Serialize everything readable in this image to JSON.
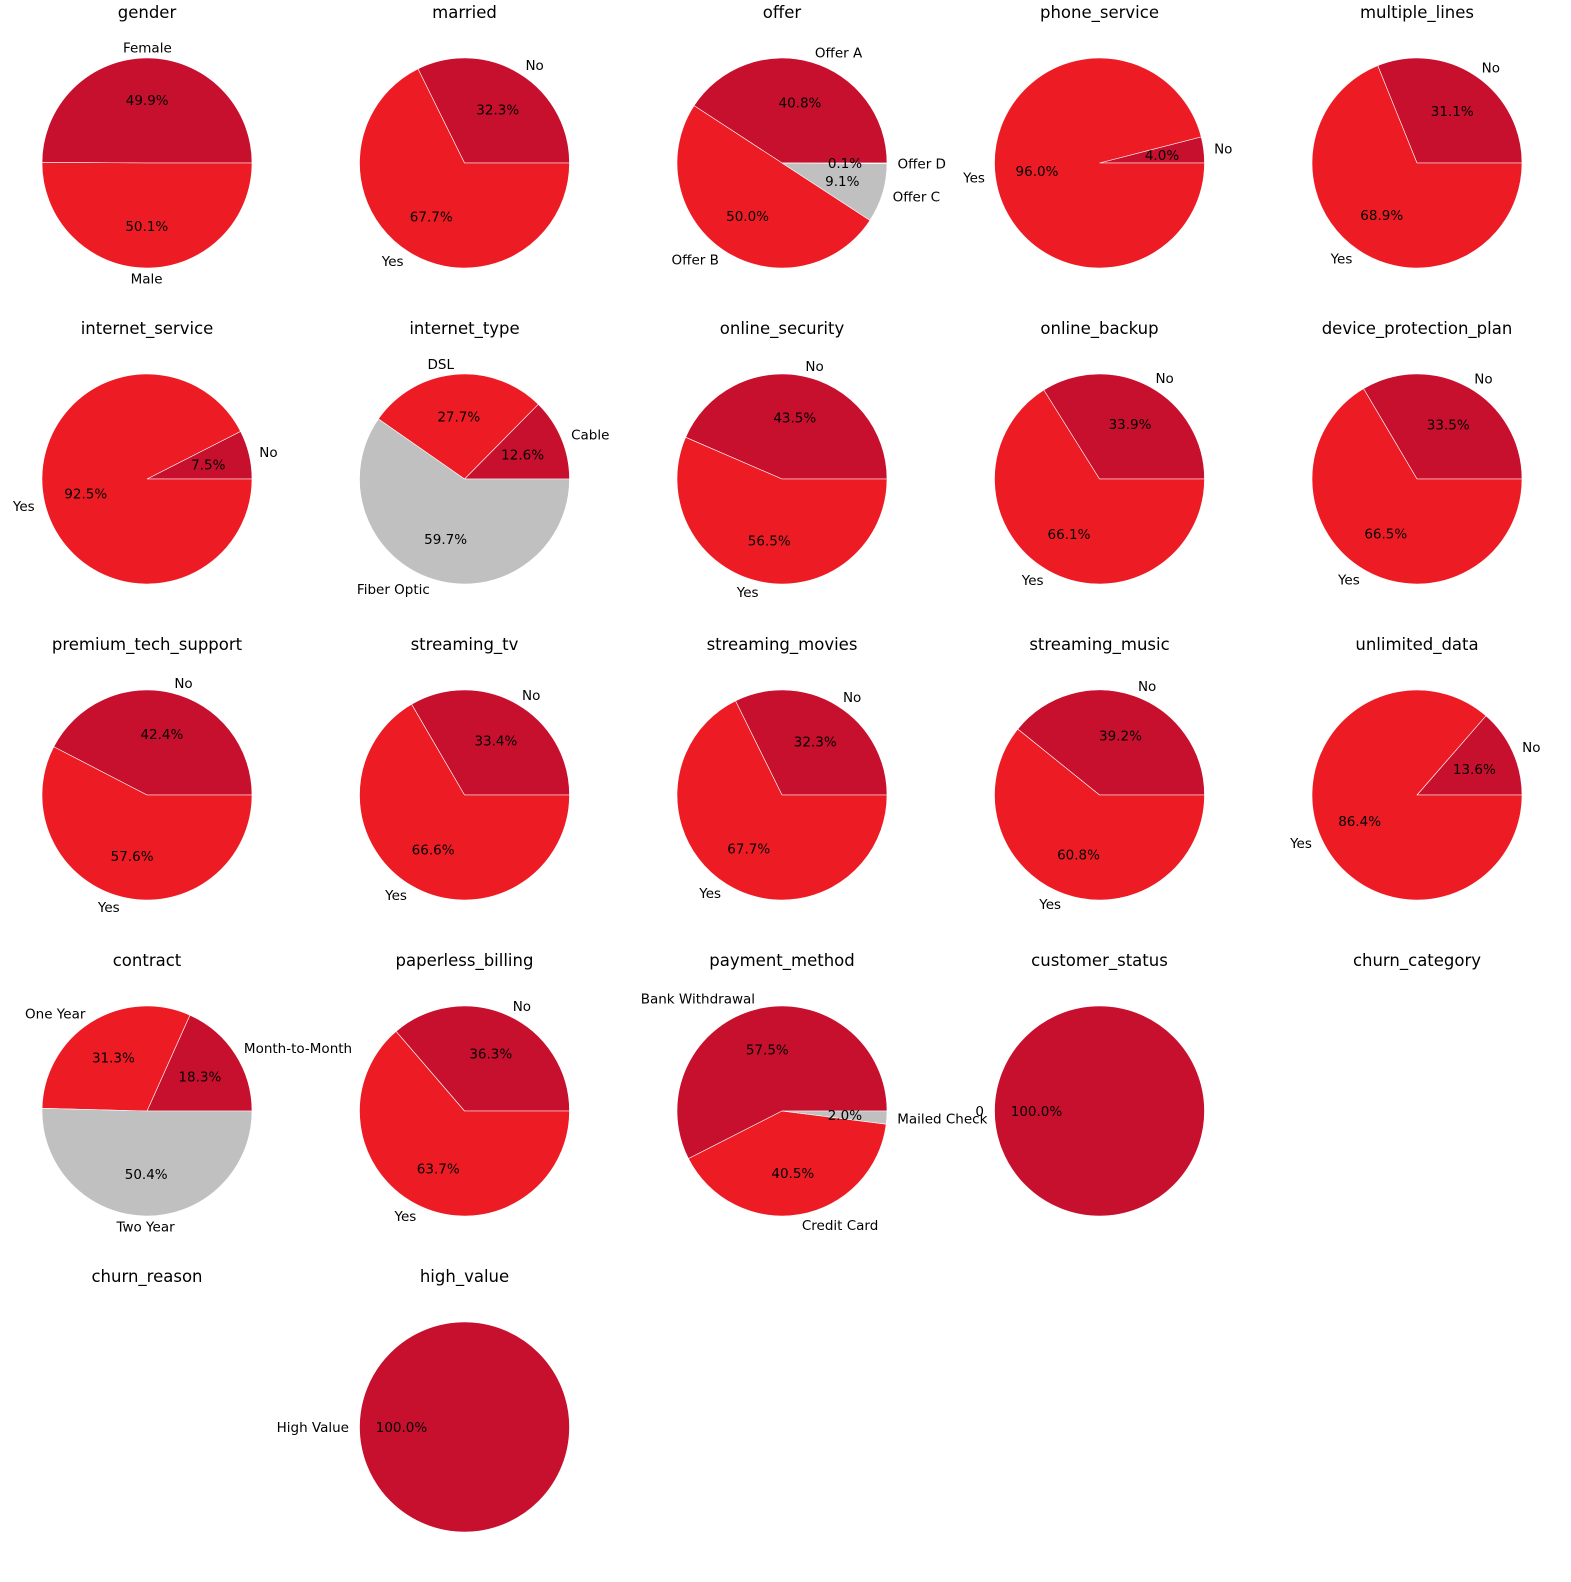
{
  "colors": {
    "primary": "#c70f2e",
    "secondary": "#ed1c24",
    "tertiary": "#c0c0c0"
  },
  "chart_data": [
    {
      "type": "pie",
      "title": "gender",
      "slices": [
        {
          "label": "Female",
          "pct": "49.9%",
          "value": 49.9,
          "color": "#c70f2e"
        },
        {
          "label": "Male",
          "pct": "50.1%",
          "value": 50.1,
          "color": "#ed1c24"
        }
      ]
    },
    {
      "type": "pie",
      "title": "married",
      "slices": [
        {
          "label": "No",
          "pct": "32.3%",
          "value": 32.3,
          "color": "#c70f2e"
        },
        {
          "label": "Yes",
          "pct": "67.7%",
          "value": 67.7,
          "color": "#ed1c24"
        }
      ]
    },
    {
      "type": "pie",
      "title": "offer",
      "slices": [
        {
          "label": "Offer A",
          "pct": "40.8%",
          "value": 40.8,
          "color": "#c70f2e"
        },
        {
          "label": "Offer B",
          "pct": "50.0%",
          "value": 50.0,
          "color": "#ed1c24"
        },
        {
          "label": "Offer C",
          "pct": "9.1%",
          "value": 9.1,
          "color": "#c0c0c0"
        },
        {
          "label": "Offer D",
          "pct": "0.1%",
          "value": 0.1,
          "color": "#c0c0c0"
        }
      ]
    },
    {
      "type": "pie",
      "title": "phone_service",
      "slices": [
        {
          "label": "No",
          "pct": "4.0%",
          "value": 4.0,
          "color": "#c70f2e"
        },
        {
          "label": "Yes",
          "pct": "96.0%",
          "value": 96.0,
          "color": "#ed1c24"
        }
      ]
    },
    {
      "type": "pie",
      "title": "multiple_lines",
      "slices": [
        {
          "label": "No",
          "pct": "31.1%",
          "value": 31.1,
          "color": "#c70f2e"
        },
        {
          "label": "Yes",
          "pct": "68.9%",
          "value": 68.9,
          "color": "#ed1c24"
        }
      ]
    },
    {
      "type": "pie",
      "title": "internet_service",
      "slices": [
        {
          "label": "No",
          "pct": "7.5%",
          "value": 7.5,
          "color": "#c70f2e"
        },
        {
          "label": "Yes",
          "pct": "92.5%",
          "value": 92.5,
          "color": "#ed1c24"
        }
      ]
    },
    {
      "type": "pie",
      "title": "internet_type",
      "slices": [
        {
          "label": "Cable",
          "pct": "12.6%",
          "value": 12.6,
          "color": "#c70f2e"
        },
        {
          "label": "DSL",
          "pct": "27.7%",
          "value": 27.7,
          "color": "#ed1c24"
        },
        {
          "label": "Fiber Optic",
          "pct": "59.7%",
          "value": 59.7,
          "color": "#c0c0c0"
        }
      ]
    },
    {
      "type": "pie",
      "title": "online_security",
      "slices": [
        {
          "label": "No",
          "pct": "43.5%",
          "value": 43.5,
          "color": "#c70f2e"
        },
        {
          "label": "Yes",
          "pct": "56.5%",
          "value": 56.5,
          "color": "#ed1c24"
        }
      ]
    },
    {
      "type": "pie",
      "title": "online_backup",
      "slices": [
        {
          "label": "No",
          "pct": "33.9%",
          "value": 33.9,
          "color": "#c70f2e"
        },
        {
          "label": "Yes",
          "pct": "66.1%",
          "value": 66.1,
          "color": "#ed1c24"
        }
      ]
    },
    {
      "type": "pie",
      "title": "device_protection_plan",
      "slices": [
        {
          "label": "No",
          "pct": "33.5%",
          "value": 33.5,
          "color": "#c70f2e"
        },
        {
          "label": "Yes",
          "pct": "66.5%",
          "value": 66.5,
          "color": "#ed1c24"
        }
      ]
    },
    {
      "type": "pie",
      "title": "premium_tech_support",
      "slices": [
        {
          "label": "No",
          "pct": "42.4%",
          "value": 42.4,
          "color": "#c70f2e"
        },
        {
          "label": "Yes",
          "pct": "57.6%",
          "value": 57.6,
          "color": "#ed1c24"
        }
      ]
    },
    {
      "type": "pie",
      "title": "streaming_tv",
      "slices": [
        {
          "label": "No",
          "pct": "33.4%",
          "value": 33.4,
          "color": "#c70f2e"
        },
        {
          "label": "Yes",
          "pct": "66.6%",
          "value": 66.6,
          "color": "#ed1c24"
        }
      ]
    },
    {
      "type": "pie",
      "title": "streaming_movies",
      "slices": [
        {
          "label": "No",
          "pct": "32.3%",
          "value": 32.3,
          "color": "#c70f2e"
        },
        {
          "label": "Yes",
          "pct": "67.7%",
          "value": 67.7,
          "color": "#ed1c24"
        }
      ]
    },
    {
      "type": "pie",
      "title": "streaming_music",
      "slices": [
        {
          "label": "No",
          "pct": "39.2%",
          "value": 39.2,
          "color": "#c70f2e"
        },
        {
          "label": "Yes",
          "pct": "60.8%",
          "value": 60.8,
          "color": "#ed1c24"
        }
      ]
    },
    {
      "type": "pie",
      "title": "unlimited_data",
      "slices": [
        {
          "label": "No",
          "pct": "13.6%",
          "value": 13.6,
          "color": "#c70f2e"
        },
        {
          "label": "Yes",
          "pct": "86.4%",
          "value": 86.4,
          "color": "#ed1c24"
        }
      ]
    },
    {
      "type": "pie",
      "title": "contract",
      "slices": [
        {
          "label": "Month-to-Month",
          "pct": "18.3%",
          "value": 18.3,
          "color": "#c70f2e"
        },
        {
          "label": "One Year",
          "pct": "31.3%",
          "value": 31.3,
          "color": "#ed1c24"
        },
        {
          "label": "Two Year",
          "pct": "50.4%",
          "value": 50.4,
          "color": "#c0c0c0"
        }
      ]
    },
    {
      "type": "pie",
      "title": "paperless_billing",
      "slices": [
        {
          "label": "No",
          "pct": "36.3%",
          "value": 36.3,
          "color": "#c70f2e"
        },
        {
          "label": "Yes",
          "pct": "63.7%",
          "value": 63.7,
          "color": "#ed1c24"
        }
      ]
    },
    {
      "type": "pie",
      "title": "payment_method",
      "slices": [
        {
          "label": "Bank Withdrawal",
          "pct": "57.5%",
          "value": 57.5,
          "color": "#c70f2e"
        },
        {
          "label": "Credit Card",
          "pct": "40.5%",
          "value": 40.5,
          "color": "#ed1c24"
        },
        {
          "label": "Mailed Check",
          "pct": "2.0%",
          "value": 2.0,
          "color": "#c0c0c0"
        }
      ]
    },
    {
      "type": "pie",
      "title": "customer_status",
      "slices": [
        {
          "label": "0",
          "pct": "100.0%",
          "value": 100.0,
          "color": "#c70f2e"
        }
      ]
    },
    {
      "type": "pie",
      "title": "churn_category",
      "slices": []
    },
    {
      "type": "pie",
      "title": "churn_reason",
      "slices": []
    },
    {
      "type": "pie",
      "title": "high_value",
      "slices": [
        {
          "label": "High Value",
          "pct": "100.0%",
          "value": 100.0,
          "color": "#c70f2e"
        }
      ]
    }
  ]
}
